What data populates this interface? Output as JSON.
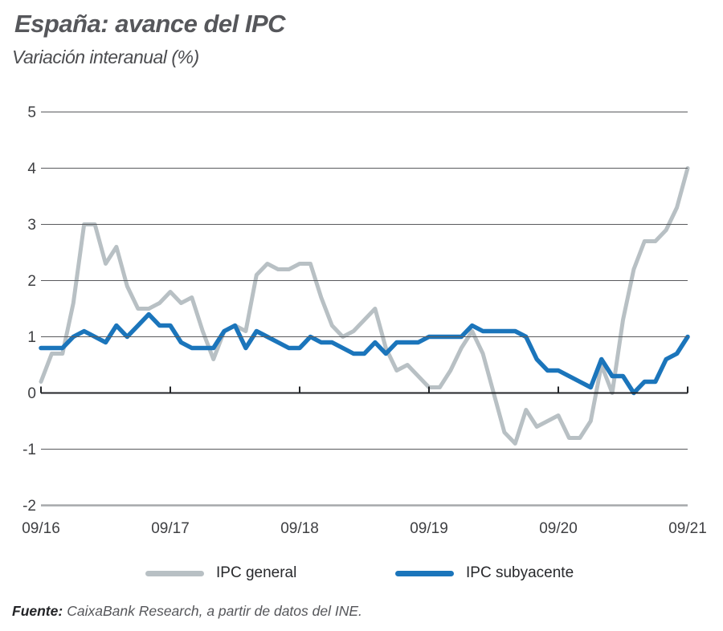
{
  "chart_data": {
    "type": "line",
    "title": "España: avance del IPC",
    "subtitle": "Variación interanual (%)",
    "x_unit": "monthly, 09/2016 to 09/2021",
    "x_tick_labels": [
      "09/16",
      "09/17",
      "09/18",
      "09/19",
      "09/20",
      "09/21"
    ],
    "ylim": [
      -2,
      5
    ],
    "y_ticks": [
      5,
      4,
      3,
      2,
      1,
      0,
      -1,
      -2
    ],
    "grid": "horizontal gridlines at integers, drawn over series; dark baseline axis at 0 with upward year ticks; thicker light-gray line at -2",
    "legend_position": "bottom",
    "series": [
      {
        "name": "IPC general",
        "color": "#b8c0c4",
        "values": [
          0.2,
          0.7,
          0.7,
          1.6,
          3.0,
          3.0,
          2.3,
          2.6,
          1.9,
          1.5,
          1.5,
          1.6,
          1.8,
          1.6,
          1.7,
          1.1,
          0.6,
          1.1,
          1.2,
          1.1,
          2.1,
          2.3,
          2.2,
          2.2,
          2.3,
          2.3,
          1.7,
          1.2,
          1.0,
          1.1,
          1.3,
          1.5,
          0.8,
          0.4,
          0.5,
          0.3,
          0.1,
          0.1,
          0.4,
          0.8,
          1.1,
          0.7,
          0.0,
          -0.7,
          -0.9,
          -0.3,
          -0.6,
          -0.5,
          -0.4,
          -0.8,
          -0.8,
          -0.5,
          0.5,
          0.0,
          1.3,
          2.2,
          2.7,
          2.7,
          2.9,
          3.3,
          4.0
        ]
      },
      {
        "name": "IPC subyacente",
        "color": "#1b75bb",
        "values": [
          0.8,
          0.8,
          0.8,
          1.0,
          1.1,
          1.0,
          0.9,
          1.2,
          1.0,
          1.2,
          1.4,
          1.2,
          1.2,
          0.9,
          0.8,
          0.8,
          0.8,
          1.1,
          1.2,
          0.8,
          1.1,
          1.0,
          0.9,
          0.8,
          0.8,
          1.0,
          0.9,
          0.9,
          0.8,
          0.7,
          0.7,
          0.9,
          0.7,
          0.9,
          0.9,
          0.9,
          1.0,
          1.0,
          1.0,
          1.0,
          1.2,
          1.1,
          1.1,
          1.1,
          1.1,
          1.0,
          0.6,
          0.4,
          0.4,
          0.3,
          0.2,
          0.1,
          0.6,
          0.3,
          0.3,
          0.0,
          0.2,
          0.2,
          0.6,
          0.7,
          1.0
        ]
      }
    ]
  },
  "footer": {
    "source_label": "Fuente:",
    "source_text": "CaixaBank Research, a partir de datos del INE."
  }
}
